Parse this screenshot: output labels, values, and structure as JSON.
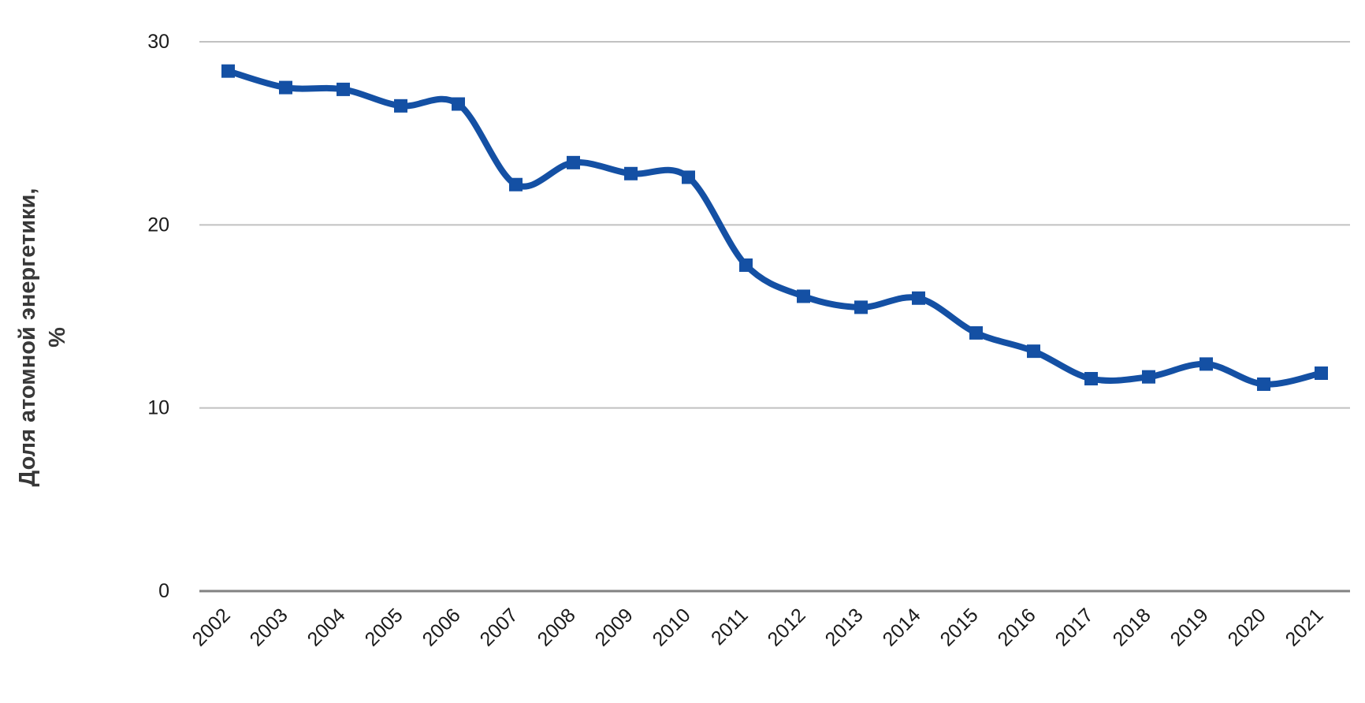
{
  "chart_data": {
    "type": "line",
    "title": "",
    "ylabel": "Доля атомной энергетики, %",
    "ylabel_lines": [
      "Доля атомной энергетики,",
      "%"
    ],
    "xlabel": "",
    "categories": [
      "2002",
      "2003",
      "2004",
      "2005",
      "2006",
      "2007",
      "2008",
      "2009",
      "2010",
      "2011",
      "2012",
      "2013",
      "2014",
      "2015",
      "2016",
      "2017",
      "2018",
      "2019",
      "2020",
      "2021"
    ],
    "series": [
      {
        "name": "Доля атомной энергетики, %",
        "values": [
          28.4,
          27.5,
          27.4,
          26.5,
          26.6,
          22.2,
          23.4,
          22.8,
          22.6,
          17.8,
          16.1,
          15.5,
          16.0,
          14.1,
          13.1,
          11.6,
          11.7,
          12.4,
          11.3,
          11.9
        ]
      }
    ],
    "ylim": [
      0,
      30
    ],
    "yticks": [
      0,
      10,
      20,
      30
    ],
    "grid": "horizontal",
    "legend": "none",
    "smooth_line": true,
    "marker": "square",
    "x_label_rotation": -45,
    "colors": {
      "line": "#1450a4",
      "marker": "#1450a4",
      "gridline": "#c1c1c1",
      "axis_line": "#828282",
      "tick_label": "#1a1a1a",
      "axis_title": "#383838",
      "background": "#ffffff"
    }
  }
}
